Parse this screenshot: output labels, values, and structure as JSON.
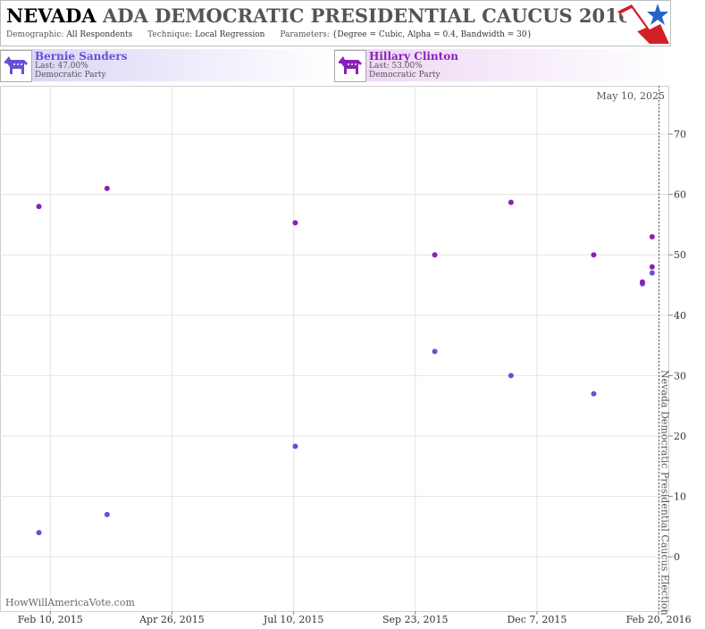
{
  "header": {
    "title_state": "NEVADA",
    "title_rest": "ADA DEMOCRATIC PRESIDENTIAL CAUCUS 2016",
    "demographic_label": "Demographic:",
    "demographic_value": "All Respondents",
    "technique_label": "Technique:",
    "technique_value": "Local Regression",
    "parameters_label": "Parameters:",
    "parameters_value": "{Degree = Cubic, Alpha = 0.4, Bandwidth = 30}"
  },
  "candidates": [
    {
      "name": "Bernie Sanders",
      "last": "Last: 47.00%",
      "party": "Democratic Party",
      "color": "#6a4fd6"
    },
    {
      "name": "Hillary Clinton",
      "last": "Last: 53.00%",
      "party": "Democratic Party",
      "color": "#8a1fb8"
    }
  ],
  "watermark": "HowWillAmericaVote.com",
  "chart_data": {
    "type": "scatter",
    "current_date_label": "May 10, 2025",
    "x_tick_labels": [
      "Feb 10, 2015",
      "Apr 26, 2015",
      "Jul 10, 2015",
      "Sep 23, 2015",
      "Dec 7, 2015",
      "Feb 20, 2016"
    ],
    "x_range": [
      "2015-01-10",
      "2016-02-26"
    ],
    "y_ticks": [
      0,
      10,
      20,
      30,
      40,
      50,
      60,
      70
    ],
    "y_range": [
      -9,
      78
    ],
    "grid": true,
    "event": {
      "date": "2016-02-20",
      "label": "Nevada Democratic Presidential Caucus Election"
    },
    "series": [
      {
        "name": "Bernie Sanders",
        "color": "#6a4fd6",
        "points": [
          {
            "x": "2015-02-03",
            "y": 4
          },
          {
            "x": "2015-03-17",
            "y": 7
          },
          {
            "x": "2015-07-11",
            "y": 18.3
          },
          {
            "x": "2015-10-05",
            "y": 34
          },
          {
            "x": "2015-11-21",
            "y": 30
          },
          {
            "x": "2016-01-11",
            "y": 27
          },
          {
            "x": "2016-02-10",
            "y": 45.2
          },
          {
            "x": "2016-02-16",
            "y": 47
          }
        ]
      },
      {
        "name": "Hillary Clinton",
        "color": "#8a1fb8",
        "points": [
          {
            "x": "2015-02-03",
            "y": 58
          },
          {
            "x": "2015-03-17",
            "y": 61
          },
          {
            "x": "2015-07-11",
            "y": 55.3
          },
          {
            "x": "2015-10-05",
            "y": 50
          },
          {
            "x": "2015-11-21",
            "y": 58.7
          },
          {
            "x": "2016-01-11",
            "y": 50
          },
          {
            "x": "2016-02-10",
            "y": 45.5
          },
          {
            "x": "2016-02-16",
            "y": 53
          },
          {
            "x": "2016-02-16",
            "y": 48
          }
        ]
      }
    ]
  }
}
